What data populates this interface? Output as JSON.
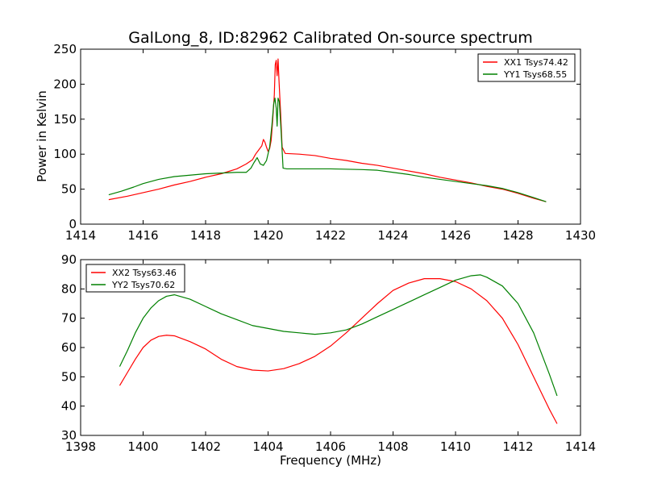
{
  "figure": {
    "title": "GalLong_8, ID:82962 Calibrated On-source spectrum",
    "ylabel": "Power in Kelvin",
    "xlabel": "Frequency (MHz)"
  },
  "chart_data": [
    {
      "type": "line",
      "title": "GalLong_8, ID:82962 Calibrated On-source spectrum",
      "ylabel": "Power in Kelvin",
      "xlabel": "",
      "xlim": [
        1414,
        1430
      ],
      "ylim": [
        0,
        250
      ],
      "xticks": [
        "1414",
        "1416",
        "1418",
        "1420",
        "1422",
        "1424",
        "1426",
        "1428",
        "1430"
      ],
      "yticks": [
        "0",
        "50",
        "100",
        "150",
        "200",
        "250"
      ],
      "grid": false,
      "legend": "top-right",
      "series": [
        {
          "name": "XX1 Tsys74.42",
          "color": "#ff0000",
          "points": [
            [
              1414.9,
              35
            ],
            [
              1415.5,
              40
            ],
            [
              1416,
              45
            ],
            [
              1416.5,
              50
            ],
            [
              1417,
              56
            ],
            [
              1417.5,
              61
            ],
            [
              1418,
              67
            ],
            [
              1418.5,
              72
            ],
            [
              1419,
              79
            ],
            [
              1419.3,
              86
            ],
            [
              1419.5,
              92
            ],
            [
              1419.6,
              100
            ],
            [
              1419.7,
              106
            ],
            [
              1419.8,
              112
            ],
            [
              1419.85,
              121
            ],
            [
              1419.9,
              117
            ],
            [
              1419.95,
              110
            ],
            [
              1420.0,
              104
            ],
            [
              1420.05,
              108
            ],
            [
              1420.1,
              120
            ],
            [
              1420.15,
              150
            ],
            [
              1420.2,
              185
            ],
            [
              1420.23,
              228
            ],
            [
              1420.26,
              234
            ],
            [
              1420.29,
              212
            ],
            [
              1420.32,
              236
            ],
            [
              1420.35,
              205
            ],
            [
              1420.4,
              160
            ],
            [
              1420.45,
              110
            ],
            [
              1420.55,
              101
            ],
            [
              1421,
              100
            ],
            [
              1421.5,
              98
            ],
            [
              1422,
              94
            ],
            [
              1422.5,
              91
            ],
            [
              1423,
              87
            ],
            [
              1423.5,
              84
            ],
            [
              1424,
              80
            ],
            [
              1424.5,
              76
            ],
            [
              1425,
              72
            ],
            [
              1425.5,
              67
            ],
            [
              1426,
              63
            ],
            [
              1426.5,
              59
            ],
            [
              1427,
              54
            ],
            [
              1427.5,
              50
            ],
            [
              1428,
              44
            ],
            [
              1428.5,
              37
            ],
            [
              1428.9,
              32
            ]
          ]
        },
        {
          "name": "YY1 Tsys68.55",
          "color": "#008000",
          "points": [
            [
              1414.9,
              42
            ],
            [
              1415.3,
              47
            ],
            [
              1415.7,
              53
            ],
            [
              1416,
              58
            ],
            [
              1416.5,
              64
            ],
            [
              1417,
              68
            ],
            [
              1417.5,
              70
            ],
            [
              1418,
              72
            ],
            [
              1418.5,
              73
            ],
            [
              1419,
              74
            ],
            [
              1419.3,
              74
            ],
            [
              1419.45,
              80
            ],
            [
              1419.55,
              88
            ],
            [
              1419.65,
              95
            ],
            [
              1419.75,
              86
            ],
            [
              1419.85,
              84
            ],
            [
              1419.95,
              91
            ],
            [
              1420.05,
              110
            ],
            [
              1420.12,
              140
            ],
            [
              1420.18,
              172
            ],
            [
              1420.22,
              180
            ],
            [
              1420.26,
              166
            ],
            [
              1420.29,
              140
            ],
            [
              1420.32,
              180
            ],
            [
              1420.36,
              175
            ],
            [
              1420.42,
              130
            ],
            [
              1420.48,
              80
            ],
            [
              1420.6,
              79
            ],
            [
              1421,
              79
            ],
            [
              1422,
              79
            ],
            [
              1423,
              78
            ],
            [
              1423.5,
              77
            ],
            [
              1424,
              74
            ],
            [
              1424.5,
              71
            ],
            [
              1425,
              67
            ],
            [
              1425.5,
              64
            ],
            [
              1426,
              61
            ],
            [
              1426.5,
              58
            ],
            [
              1427,
              55
            ],
            [
              1427.5,
              51
            ],
            [
              1428,
              45
            ],
            [
              1428.5,
              38
            ],
            [
              1428.9,
              32
            ]
          ]
        }
      ]
    },
    {
      "type": "line",
      "title": "",
      "ylabel": "",
      "xlabel": "Frequency (MHz)",
      "xlim": [
        1398,
        1414
      ],
      "ylim": [
        30,
        90
      ],
      "xticks": [
        "1398",
        "1400",
        "1402",
        "1404",
        "1406",
        "1408",
        "1410",
        "1412",
        "1414"
      ],
      "yticks": [
        "30",
        "40",
        "50",
        "60",
        "70",
        "80",
        "90"
      ],
      "grid": false,
      "legend": "top-left",
      "series": [
        {
          "name": "XX2 Tsys63.46",
          "color": "#ff0000",
          "points": [
            [
              1399.25,
              47
            ],
            [
              1399.5,
              51.5
            ],
            [
              1399.75,
              56
            ],
            [
              1400,
              60
            ],
            [
              1400.25,
              62.5
            ],
            [
              1400.5,
              63.8
            ],
            [
              1400.75,
              64.2
            ],
            [
              1401,
              64
            ],
            [
              1401.5,
              62
            ],
            [
              1402,
              59.5
            ],
            [
              1402.5,
              56
            ],
            [
              1403,
              53.5
            ],
            [
              1403.5,
              52.3
            ],
            [
              1404,
              52
            ],
            [
              1404.5,
              52.8
            ],
            [
              1405,
              54.5
            ],
            [
              1405.5,
              57
            ],
            [
              1406,
              60.5
            ],
            [
              1406.5,
              65
            ],
            [
              1407,
              70
            ],
            [
              1407.5,
              75
            ],
            [
              1408,
              79.5
            ],
            [
              1408.5,
              82
            ],
            [
              1409,
              83.5
            ],
            [
              1409.5,
              83.5
            ],
            [
              1410,
              82.5
            ],
            [
              1410.5,
              80
            ],
            [
              1411,
              76
            ],
            [
              1411.5,
              70
            ],
            [
              1412,
              61
            ],
            [
              1412.5,
              50
            ],
            [
              1413,
              39
            ],
            [
              1413.25,
              34
            ]
          ]
        },
        {
          "name": "YY2 Tsys70.62",
          "color": "#008000",
          "points": [
            [
              1399.25,
              53.5
            ],
            [
              1399.5,
              59
            ],
            [
              1399.75,
              65
            ],
            [
              1400,
              70
            ],
            [
              1400.25,
              73.5
            ],
            [
              1400.5,
              76
            ],
            [
              1400.75,
              77.5
            ],
            [
              1401,
              78
            ],
            [
              1401.5,
              76.5
            ],
            [
              1402,
              74
            ],
            [
              1402.5,
              71.5
            ],
            [
              1403,
              69.5
            ],
            [
              1403.5,
              67.5
            ],
            [
              1404,
              66.5
            ],
            [
              1404.5,
              65.5
            ],
            [
              1405,
              65
            ],
            [
              1405.5,
              64.5
            ],
            [
              1406,
              65
            ],
            [
              1406.5,
              66
            ],
            [
              1407,
              68
            ],
            [
              1407.5,
              70.5
            ],
            [
              1408,
              73
            ],
            [
              1408.5,
              75.5
            ],
            [
              1409,
              78
            ],
            [
              1409.5,
              80.5
            ],
            [
              1410,
              83
            ],
            [
              1410.5,
              84.5
            ],
            [
              1410.8,
              84.8
            ],
            [
              1411,
              84
            ],
            [
              1411.5,
              81
            ],
            [
              1412,
              75
            ],
            [
              1412.5,
              65
            ],
            [
              1413,
              51
            ],
            [
              1413.25,
              43.5
            ]
          ]
        }
      ]
    }
  ]
}
